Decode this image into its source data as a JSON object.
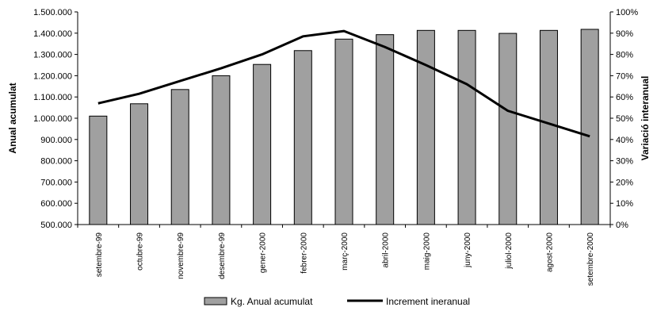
{
  "chart_data": {
    "type": "bar+line",
    "categories": [
      "setembre-99",
      "octubre-99",
      "novembre-99",
      "desembre-99",
      "gener-2000",
      "febrer-2000",
      "març-2000",
      "abril-2000",
      "maig-2000",
      "juny-2000",
      "juliol-2000",
      "agost-2000",
      "setembre-2000"
    ],
    "series": [
      {
        "name": "Kg. Anual acumulat",
        "type": "bar",
        "axis": "left",
        "values": [
          1010000,
          1068000,
          1135000,
          1200000,
          1253000,
          1318000,
          1372000,
          1393000,
          1413000,
          1413000,
          1399000,
          1413000,
          1418000
        ]
      },
      {
        "name": "Increment ineranual",
        "type": "line",
        "axis": "right",
        "values": [
          0.57,
          0.615,
          0.675,
          0.735,
          0.8,
          0.885,
          0.91,
          0.835,
          0.75,
          0.66,
          0.535,
          0.475,
          0.415
        ]
      }
    ],
    "ylabel_left": "Anual acumulat",
    "ylabel_right": "Variació interanual",
    "ylim_left": [
      500000,
      1500000
    ],
    "ylim_right": [
      0,
      1
    ],
    "yticks_left": [
      "500.000",
      "600.000",
      "700.000",
      "800.000",
      "900.000",
      "1.000.000",
      "1.100.000",
      "1.200.000",
      "1.300.000",
      "1.400.000",
      "1.500.000"
    ],
    "yticks_right": [
      "0%",
      "10%",
      "20%",
      "30%",
      "40%",
      "50%",
      "60%",
      "70%",
      "80%",
      "90%",
      "100%"
    ],
    "grid": false,
    "legend_position": "bottom-left",
    "colors": {
      "bar": "#a0a0a0",
      "bar_stroke": "#000000",
      "line": "#000000"
    }
  }
}
